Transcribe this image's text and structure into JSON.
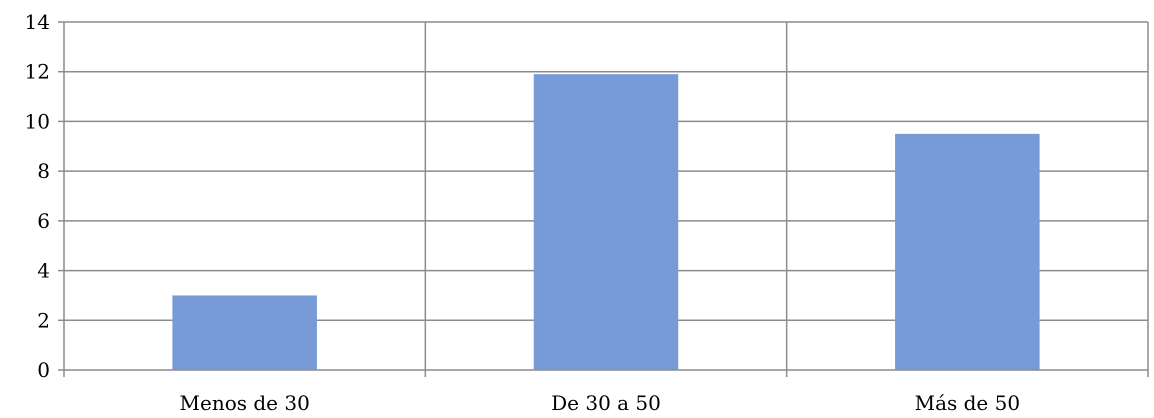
{
  "chart_data": {
    "type": "bar",
    "categories": [
      "Menos de 30",
      "De 30 a 50",
      "Más de 50"
    ],
    "values": [
      3,
      11.9,
      9.5
    ],
    "ylim": [
      0,
      14
    ],
    "yticks": [
      0,
      2,
      4,
      6,
      8,
      10,
      12,
      14
    ],
    "grid": true,
    "bar_color": "#789BD8",
    "gridline_color": "#8C8C8C",
    "text_color": "#000000"
  }
}
